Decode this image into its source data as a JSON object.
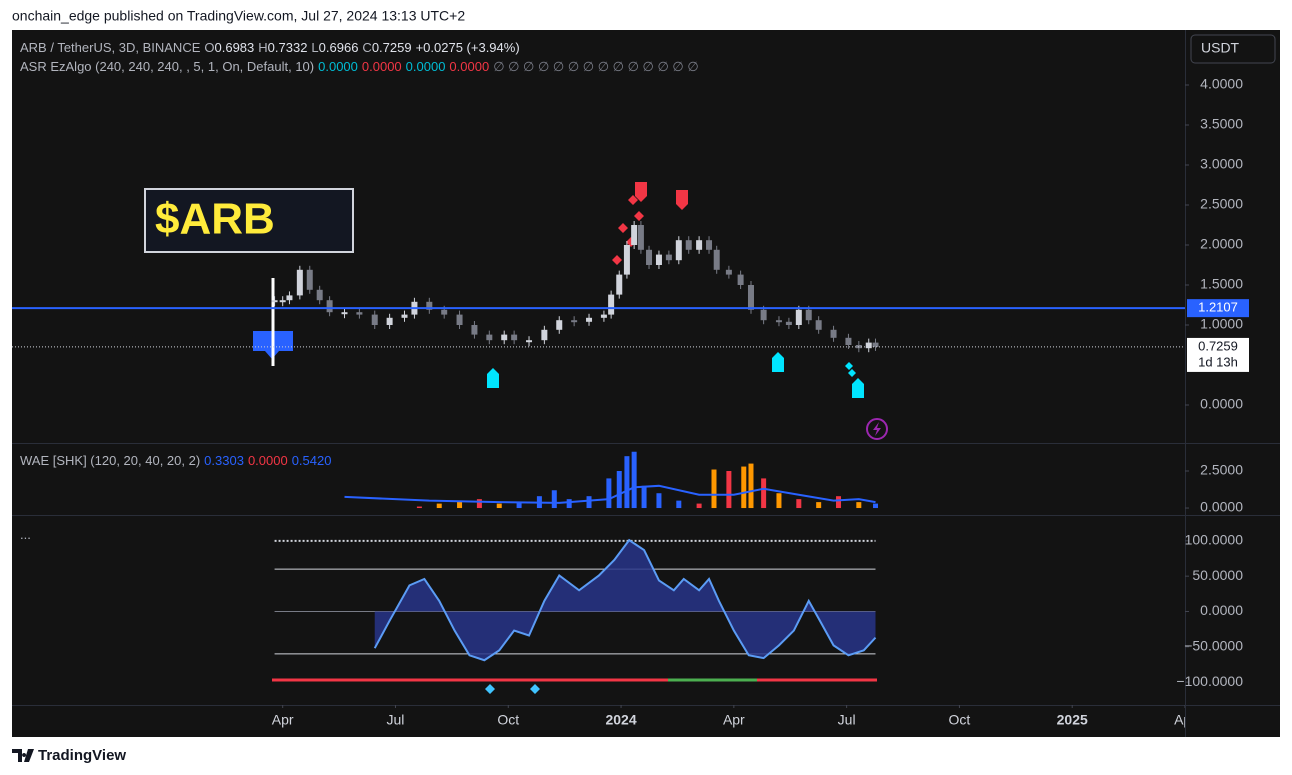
{
  "header": {
    "text": "onchain_edge published on TradingView.com, Jul 27, 2024 13:13 UTC+2"
  },
  "legend": {
    "symbol": "ARB / TetherUS, 3D, BINANCE",
    "ohlc": [
      {
        "key": "O",
        "value": "0.6983"
      },
      {
        "key": "H",
        "value": "0.7332"
      },
      {
        "key": "L",
        "value": "0.6966"
      },
      {
        "key": "C",
        "value": "0.7259"
      }
    ],
    "change": "+0.0275 (+3.94%)"
  },
  "indicator": {
    "name": "ASR EzAlgo (240, 240, 240, , 5, 1, On, Default, 10)",
    "values": [
      {
        "text": "0.0000",
        "color": "#00bcd4"
      },
      {
        "text": "0.0000",
        "color": "#f23645"
      },
      {
        "text": "0.0000",
        "color": "#00bcd4"
      },
      {
        "text": "0.0000",
        "color": "#f23645"
      }
    ],
    "empty": "∅ ∅ ∅ ∅ ∅ ∅ ∅ ∅ ∅ ∅ ∅ ∅ ∅ ∅"
  },
  "annotation": "$ARB",
  "currency_button": "USDT",
  "countdown": "1d 13h",
  "chart_data": [
    {
      "type": "candlestick",
      "x": [
        2023.232,
        2023.25,
        2023.265,
        2023.288,
        2023.31,
        2023.332,
        2023.354,
        2023.387,
        2023.42,
        2023.454,
        2023.487,
        2023.52,
        2023.542,
        2023.575,
        2023.608,
        2023.642,
        2023.675,
        2023.708,
        2023.741,
        2023.763,
        2023.796,
        2023.83,
        2023.863,
        2023.896,
        2023.929,
        2023.962,
        2023.978,
        2023.996,
        2024.013,
        2024.029,
        2024.044,
        2024.062,
        2024.084,
        2024.106,
        2024.128,
        2024.15,
        2024.173,
        2024.195,
        2024.212,
        2024.239,
        2024.265,
        2024.288,
        2024.316,
        2024.35,
        2024.372,
        2024.394,
        2024.416,
        2024.438,
        2024.471,
        2024.504,
        2024.527,
        2024.549,
        2024.564
      ],
      "values": [
        1.31,
        1.31,
        1.37,
        1.69,
        1.44,
        1.31,
        1.16,
        1.16,
        1.13,
        1.0,
        1.09,
        1.13,
        1.29,
        1.19,
        1.13,
        1.0,
        0.88,
        0.81,
        0.88,
        0.81,
        0.81,
        0.94,
        1.06,
        1.04,
        1.09,
        1.13,
        1.38,
        1.63,
        2.0,
        2.25,
        1.94,
        1.75,
        1.88,
        1.81,
        2.06,
        1.94,
        2.06,
        1.94,
        1.69,
        1.63,
        1.5,
        1.19,
        1.06,
        1.04,
        1.0,
        1.19,
        1.06,
        0.94,
        0.84,
        0.75,
        0.71,
        0.78,
        0.7259
      ],
      "up_color": "#d1d4dc",
      "down_color": "#787b86",
      "xlim": [
        2022.65,
        2025.25
      ],
      "xticks": [
        {
          "value": 2023.25,
          "label": "Apr"
        },
        {
          "value": 2023.5,
          "label": "Jul"
        },
        {
          "value": 2023.75,
          "label": "Oct"
        },
        2024,
        {
          "value": 2024.25,
          "label": "Apr"
        },
        {
          "value": 2024.5,
          "label": "Jul"
        },
        {
          "value": 2024.75,
          "label": "Oct"
        },
        2025,
        {
          "value": 2025.25,
          "label": "Apr"
        }
      ],
      "ylim": [
        -0.475,
        4.6875
      ],
      "yticks": [
        {
          "value": 4,
          "label": "4.0000"
        },
        {
          "value": 3.5,
          "label": "3.5000"
        },
        {
          "value": 3,
          "label": "3.0000"
        },
        {
          "value": 2.5,
          "label": "2.5000"
        },
        {
          "value": 2,
          "label": "2.0000"
        },
        {
          "value": 1.5,
          "label": "1.5000"
        },
        {
          "value": 1,
          "label": "1.0000"
        },
        {
          "value": 0,
          "label": "0.0000"
        }
      ],
      "hline": {
        "value": 1.2107,
        "color": "#2962ff"
      }
    },
    {
      "type": "bar",
      "title": "WAE [SHK] (120, 20, 40, 20, 2)",
      "legend_values": [
        {
          "text": "0.3303",
          "color": "#2962ff"
        },
        {
          "text": "0.0000",
          "color": "#f23645"
        },
        {
          "text": "0.5420",
          "color": "#2962ff"
        }
      ],
      "x": [
        2023.553,
        2023.597,
        2023.642,
        2023.686,
        2023.73,
        2023.774,
        2023.819,
        2023.852,
        2023.885,
        2023.929,
        2023.973,
        2023.996,
        2024.013,
        2024.029,
        2024.051,
        2024.084,
        2024.128,
        2024.173,
        2024.206,
        2024.239,
        2024.272,
        2024.288,
        2024.316,
        2024.35,
        2024.394,
        2024.438,
        2024.482,
        2024.527,
        2024.564
      ],
      "values": [
        0.1,
        0.3,
        0.5,
        0.6,
        0.3,
        0.4,
        0.8,
        1.2,
        0.6,
        0.8,
        2.0,
        2.5,
        3.5,
        3.8,
        1.5,
        1.0,
        0.5,
        0.3,
        2.6,
        2.5,
        2.8,
        3.0,
        2.0,
        1.0,
        0.6,
        0.4,
        0.8,
        0.4,
        0.3
      ],
      "colors": [
        "#f23645",
        "#ff9800",
        "#ff9800",
        "#f23645",
        "#ff9800",
        "#2962ff",
        "#2962ff",
        "#2962ff",
        "#2962ff",
        "#2962ff",
        "#2962ff",
        "#2962ff",
        "#2962ff",
        "#2962ff",
        "#2962ff",
        "#2962ff",
        "#2962ff",
        "#f23645",
        "#ff9800",
        "#f23645",
        "#ff9800",
        "#ff9800",
        "#f23645",
        "#ff9800",
        "#f23645",
        "#ff9800",
        "#f23645",
        "#ff9800",
        "#2962ff"
      ],
      "line": {
        "color": "#2962ff",
        "x": [
          2023.387,
          2023.575,
          2023.73,
          2023.863,
          2023.973,
          2024.029,
          2024.084,
          2024.173,
          2024.25,
          2024.316,
          2024.394,
          2024.471,
          2024.527,
          2024.564
        ],
        "values": [
          0.75,
          0.5,
          0.4,
          0.35,
          0.6,
          1.4,
          1.5,
          0.9,
          0.9,
          1.3,
          0.9,
          0.5,
          0.6,
          0.4
        ]
      },
      "ylim": [
        -0.47,
        4.39
      ],
      "yticks": [
        {
          "value": 2.5,
          "label": "2.5000"
        },
        {
          "value": 0,
          "label": "0.0000"
        }
      ]
    },
    {
      "type": "area",
      "title": "...",
      "color": "#28358a",
      "line_color": "#5b9cf5",
      "x": [
        2023.454,
        2023.487,
        2023.531,
        2023.564,
        2023.597,
        2023.631,
        2023.664,
        2023.697,
        2023.73,
        2023.763,
        2023.796,
        2023.83,
        2023.863,
        2023.907,
        2023.951,
        2023.985,
        2024.018,
        2024.051,
        2024.084,
        2024.117,
        2024.139,
        2024.173,
        2024.195,
        2024.217,
        2024.25,
        2024.283,
        2024.316,
        2024.35,
        2024.383,
        2024.416,
        2024.438,
        2024.471,
        2024.504,
        2024.538,
        2024.564
      ],
      "values": [
        -52,
        -13,
        37,
        46,
        15,
        -27,
        -62,
        -69,
        -55,
        -27,
        -34,
        15,
        51,
        30,
        51,
        73,
        101,
        87,
        44,
        30,
        46,
        30,
        46,
        15,
        -27,
        -62,
        -66,
        -48,
        -27,
        15,
        -10,
        -48,
        -62,
        -55,
        -37
      ],
      "levels": [
        {
          "value": 100,
          "dashed": true
        },
        {
          "value": 60,
          "dashed": false
        },
        {
          "value": 0,
          "dashed": false
        },
        {
          "value": -60,
          "dashed": false
        }
      ],
      "ylim": [
        -132.4,
        136.6
      ],
      "yticks": [
        {
          "value": 100,
          "label": "100.0000"
        },
        {
          "value": 50,
          "label": "50.0000"
        },
        {
          "value": 0,
          "label": "0.0000"
        },
        {
          "value": -50,
          "label": "−50.0000"
        },
        {
          "value": -100,
          "label": "−100.0000"
        }
      ]
    }
  ],
  "footer": {
    "brand": "TradingView"
  }
}
